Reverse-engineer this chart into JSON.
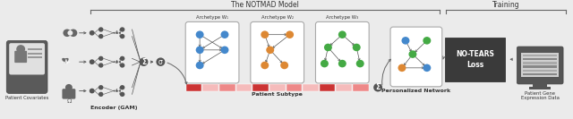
{
  "title": "The NOTMAD Model",
  "subtitle_encoder": "Encoder (GAM)",
  "subtitle_patient_subtype": "Patient Subtype",
  "subtitle_personalized": "Personalized Network",
  "subtitle_training": "Training",
  "label_patient_covariates": "Patient Covariates",
  "label_notears": "NO-TEARS\nLoss",
  "label_patient_gene": "Patient Gene\nExpression Data",
  "label_archetype1": "Archetype W₁",
  "label_archetype2": "Archetype W₂",
  "label_archetype3": "Archetype W₃",
  "bg_color": "#ebebeb",
  "dark_gray": "#555555",
  "med_gray": "#888888",
  "light_gray": "#cccccc",
  "node_dark": "#555555",
  "blue": "#4488cc",
  "orange": "#dd8833",
  "green": "#44aa44",
  "red_dark": "#cc3333",
  "red_med": "#ee8888",
  "red_light": "#f5bbbb",
  "notears_bg": "#3a3a3a",
  "notears_text": "#ffffff",
  "bracket_color": "#666666",
  "arrow_color": "#666666",
  "box_edge": "#aaaaaa"
}
